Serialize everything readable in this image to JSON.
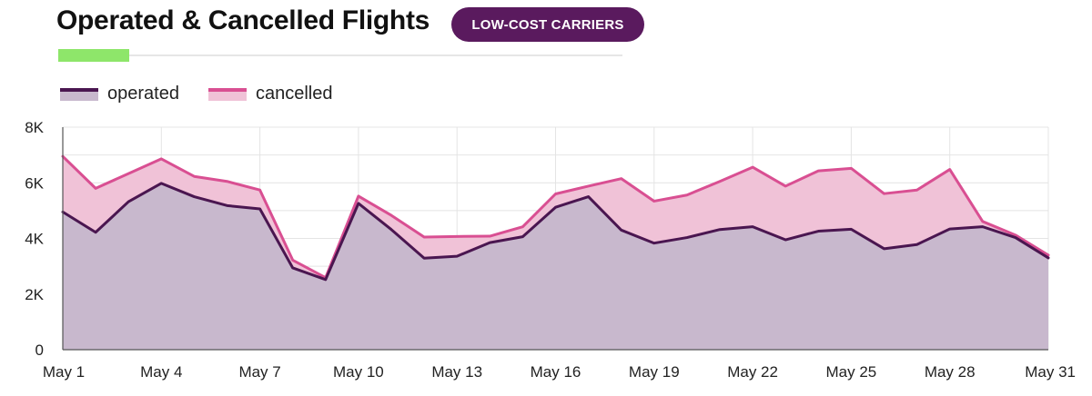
{
  "header": {
    "title": "Operated & Cancelled Flights",
    "badge": "LOW-COST CARRIERS"
  },
  "chart_data": {
    "type": "area",
    "x": [
      "May 1",
      "May 2",
      "May 3",
      "May 4",
      "May 5",
      "May 6",
      "May 7",
      "May 8",
      "May 9",
      "May 10",
      "May 11",
      "May 12",
      "May 13",
      "May 14",
      "May 15",
      "May 16",
      "May 17",
      "May 18",
      "May 19",
      "May 20",
      "May 21",
      "May 22",
      "May 23",
      "May 24",
      "May 25",
      "May 26",
      "May 27",
      "May 28",
      "May 29",
      "May 30",
      "May 31"
    ],
    "x_ticks": [
      "May 1",
      "May 4",
      "May 7",
      "May 10",
      "May 13",
      "May 16",
      "May 19",
      "May 22",
      "May 25",
      "May 28",
      "May 31"
    ],
    "y_ticks": [
      "0",
      "2K",
      "4K",
      "6K",
      "8K"
    ],
    "ylim": [
      0,
      8000
    ],
    "grid": true,
    "legend_position": "top-left",
    "series": [
      {
        "name": "operated",
        "color": "#4a1650",
        "fill": "#c8b8cd",
        "values": [
          4950,
          4220,
          5320,
          5980,
          5500,
          5180,
          5060,
          2940,
          2520,
          5260,
          4320,
          3290,
          3360,
          3850,
          4060,
          5120,
          5500,
          4300,
          3830,
          4030,
          4320,
          4420,
          3950,
          4260,
          4330,
          3630,
          3780,
          4340,
          4420,
          4030,
          3300
        ]
      },
      {
        "name": "cancelled",
        "color": "#d94f92",
        "fill": "#f0c2d7",
        "values": [
          6950,
          5800,
          6330,
          6860,
          6230,
          6050,
          5740,
          3220,
          2590,
          5520,
          4830,
          4050,
          4070,
          4080,
          4420,
          5600,
          5880,
          6150,
          5340,
          5560,
          6050,
          6560,
          5880,
          6430,
          6520,
          5610,
          5740,
          6480,
          4610,
          4120,
          3400
        ]
      }
    ]
  }
}
